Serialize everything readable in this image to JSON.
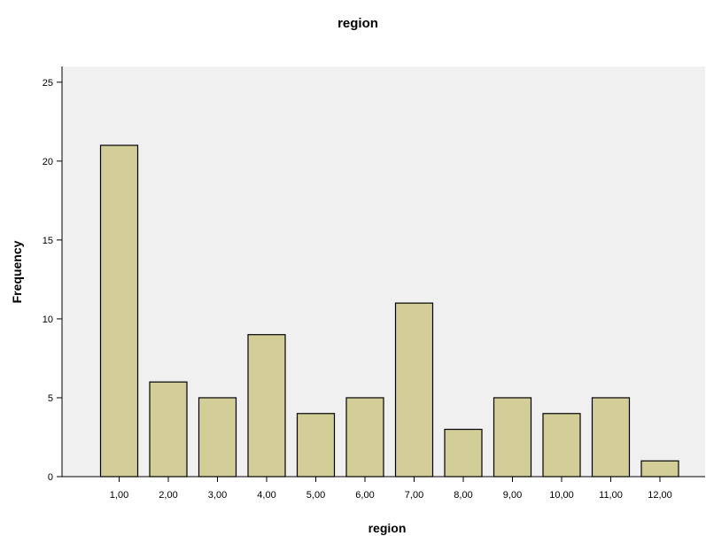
{
  "chart_data": {
    "type": "bar",
    "title": "region",
    "xlabel": "region",
    "ylabel": "Frequency",
    "categories": [
      "1,00",
      "2,00",
      "3,00",
      "4,00",
      "5,00",
      "6,00",
      "7,00",
      "8,00",
      "9,00",
      "10,00",
      "11,00",
      "12,00"
    ],
    "values": [
      21,
      6,
      5,
      9,
      4,
      5,
      11,
      3,
      5,
      4,
      5,
      1
    ],
    "ylim": [
      0,
      26
    ],
    "yticks": [
      0,
      5,
      10,
      15,
      20,
      25
    ],
    "grid": false,
    "legend": "none",
    "colors": {
      "plot_background": "#f0f0f0",
      "bar_fill": "#d3ce97",
      "bar_stroke": "#000000"
    }
  }
}
